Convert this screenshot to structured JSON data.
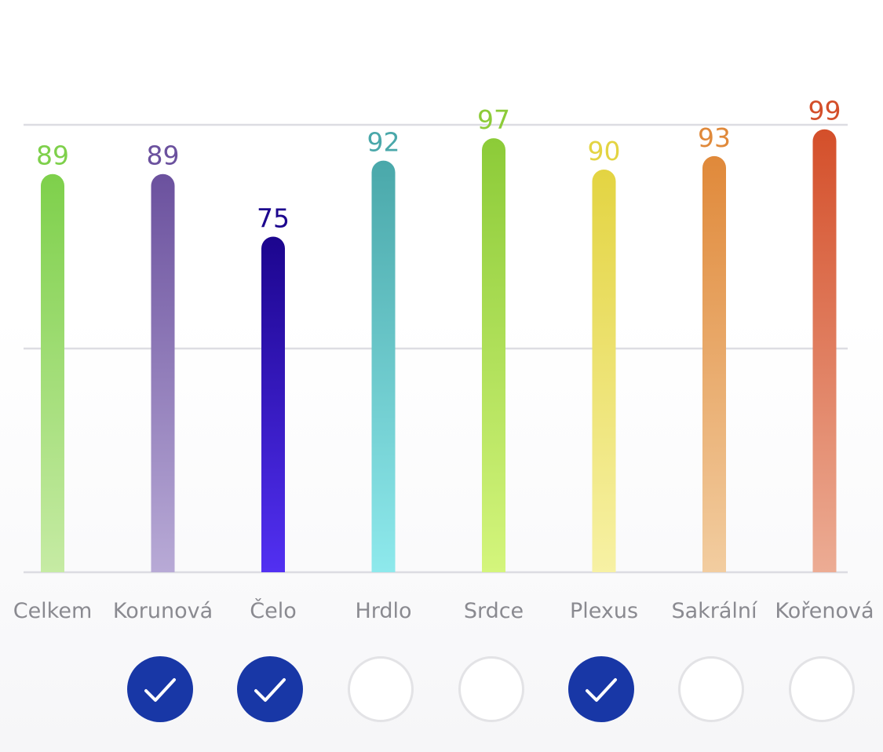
{
  "chart_data": {
    "type": "bar",
    "title": "",
    "xlabel": "",
    "ylabel": "",
    "ylim": [
      0,
      100
    ],
    "grid": true,
    "categories": [
      "Celkem",
      "Korunová",
      "Čelo",
      "Hrdlo",
      "Srdce",
      "Plexus",
      "Sakrální",
      "Kořenová"
    ],
    "values": [
      89,
      89,
      75,
      92,
      97,
      90,
      93,
      99
    ],
    "colors": [
      {
        "top": "#7ed04b",
        "bottom": "#c6eba4"
      },
      {
        "top": "#6b519e",
        "bottom": "#b8aad6"
      },
      {
        "top": "#1c058e",
        "bottom": "#5230f2"
      },
      {
        "top": "#4aa8aa",
        "bottom": "#8ee9ec"
      },
      {
        "top": "#8ccb38",
        "bottom": "#d4f57c"
      },
      {
        "top": "#e3d442",
        "bottom": "#f7f1a4"
      },
      {
        "top": "#e0893a",
        "bottom": "#f2cda0"
      },
      {
        "top": "#d44f2a",
        "bottom": "#ecac94"
      }
    ]
  },
  "toggles": [
    null,
    true,
    true,
    false,
    false,
    true,
    false,
    false
  ],
  "toggle_icon": "checkmark-icon",
  "toggle_color": "#1837a6"
}
